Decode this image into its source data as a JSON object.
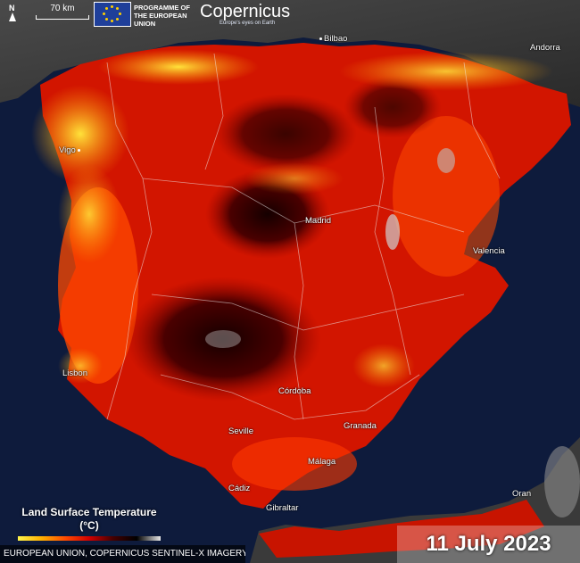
{
  "header": {
    "north_label": "N",
    "scale_label": "70 km",
    "eu_programme_text": "PROGRAMME OF THE EUROPEAN UNION",
    "copernicus_logo": "Copernicus",
    "copernicus_tagline": "Europe's eyes on Earth"
  },
  "cities": [
    {
      "name": "Bilbao"
    },
    {
      "name": "Andorra"
    },
    {
      "name": "Vigo"
    },
    {
      "name": "Madrid"
    },
    {
      "name": "Valencia"
    },
    {
      "name": "Lisbon"
    },
    {
      "name": "Córdoba"
    },
    {
      "name": "Granada"
    },
    {
      "name": "Seville"
    },
    {
      "name": "Málaga"
    },
    {
      "name": "Cádiz"
    },
    {
      "name": "Gibraltar"
    },
    {
      "name": "Oran"
    }
  ],
  "legend": {
    "title": "Land Surface Temperature (°C)"
  },
  "credit": "EUROPEAN UNION, COPERNICUS SENTINEL-X IMAGERY",
  "date": "11 July 2023",
  "colors": {
    "sea": "#0e1b3c",
    "land_outside": "#3a3a3a",
    "hot": "#d21500",
    "very_hot": "#3a0000",
    "warm": "#ff4a00",
    "mild": "#ffd21a"
  }
}
